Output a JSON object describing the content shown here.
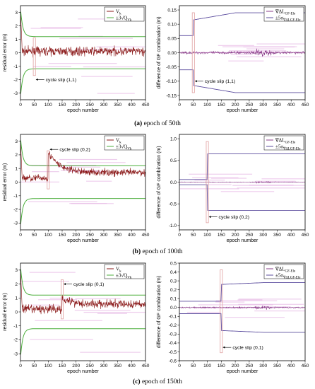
{
  "colors": {
    "residual": "#8b1a1a",
    "threshold": "#4caf3c",
    "mask": "#e7b9e6",
    "gf_diff": "#8a3c8a",
    "gf_bound": "#5b4c9e",
    "slip_box": "#e0a0a0"
  },
  "captions": [
    {
      "label": "(a)",
      "text": " epoch of 50th"
    },
    {
      "label": "(b)",
      "text": " epoch of 100th"
    },
    {
      "label": "(c)",
      "text": " epoch of 150th"
    }
  ],
  "chart_data": [
    {
      "type": "line",
      "panel": "a-left",
      "xlabel": "epoch number",
      "ylabel": "residual error (m)",
      "xlim": [
        0,
        450
      ],
      "ylim": [
        -3.5,
        3.5
      ],
      "xticks": [
        "0",
        "50",
        "100",
        "150",
        "200",
        "250",
        "300",
        "350",
        "400",
        "450"
      ],
      "yticks": [
        "-3",
        "-2",
        "-1",
        "0",
        "1",
        "2",
        "3"
      ],
      "legend": {
        "position": "top-right",
        "entries": [
          "V_k",
          "±3√Q_Vk"
        ]
      },
      "series": [
        {
          "name": "V_k",
          "level_before": 0.1,
          "level_after": 0.1,
          "noise": 0.3,
          "spike_epoch": 50
        },
        {
          "name": "±3√Q_Vk",
          "start": 3.3,
          "asymptote": 1.2
        }
      ],
      "annotation": {
        "text": "cycle slip (1,1)",
        "epoch": 50,
        "y": -2.0
      }
    },
    {
      "type": "line",
      "panel": "a-right",
      "xlabel": "epoch number",
      "ylabel": "difference of GF combination (m)",
      "xlim": [
        0,
        450
      ],
      "ylim": [
        -0.165,
        0.165
      ],
      "xticks": [
        "0",
        "50",
        "100",
        "150",
        "200",
        "250",
        "300",
        "350",
        "400",
        "450"
      ],
      "yticks": [
        "-0.15",
        "-0.10",
        "-0.05",
        "0.00",
        "0.05",
        "0.10",
        "0.15"
      ],
      "legend": {
        "position": "top-right",
        "entries": [
          "∇ΔL_GF-Ele",
          "±5σ_∇ΔL_GF-Ele"
        ]
      },
      "series": [
        {
          "name": "∇ΔL_GF-Ele",
          "noise": 0.004
        },
        {
          "name": "±5σ_∇ΔL_GF-Ele",
          "before": 0.06,
          "after": 0.115,
          "end": 0.14,
          "slip_epoch": 50
        }
      ],
      "annotation": {
        "text": "cycle slip (1,1)",
        "epoch": 50,
        "y": -0.1
      }
    },
    {
      "type": "line",
      "panel": "b-left",
      "xlabel": "epoch number",
      "ylabel": "residual error (m)",
      "xlim": [
        0,
        450
      ],
      "ylim": [
        -3.5,
        3.5
      ],
      "xticks": [
        "0",
        "50",
        "100",
        "150",
        "200",
        "250",
        "300",
        "350",
        "400",
        "450"
      ],
      "yticks": [
        "-3",
        "-2",
        "-1",
        "0",
        "1",
        "2",
        "3"
      ],
      "legend": {
        "position": "top-right",
        "entries": [
          "V_k",
          "±3√Q_Vk"
        ]
      },
      "series": [
        {
          "name": "V_k",
          "level_before": 0.3,
          "level_after": 2.2,
          "decay_to": 0.7,
          "noise": 0.25,
          "spike_epoch": 100
        },
        {
          "name": "±3√Q_Vk",
          "start": 3.3,
          "asymptote": 1.2
        }
      ],
      "annotation": {
        "text": "cycle slip (0,2)",
        "epoch": 100,
        "y": 2.4
      }
    },
    {
      "type": "line",
      "panel": "b-right",
      "xlabel": "epoch number",
      "ylabel": "difference of GF combination (m)",
      "xlim": [
        0,
        450
      ],
      "ylim": [
        -1.1,
        1.1
      ],
      "xticks": [
        "0",
        "50",
        "100",
        "150",
        "200",
        "250",
        "300",
        "350",
        "400",
        "450"
      ],
      "yticks": [
        "-1.0",
        "-0.5",
        "0.0",
        "0.5",
        "1.0"
      ],
      "legend": {
        "position": "top-right",
        "entries": [
          "∇ΔL_GF-Ele",
          "±5σ_∇ΔL_GF-Ele"
        ]
      },
      "series": [
        {
          "name": "∇ΔL_GF-Ele",
          "noise": 0.006
        },
        {
          "name": "±5σ_∇ΔL_GF-Ele",
          "before": 0.06,
          "after": 0.65,
          "end": 0.65,
          "slip_epoch": 100
        }
      ],
      "annotation": {
        "text": "cycle slip (0,2)",
        "epoch": 100,
        "y": -0.8
      }
    },
    {
      "type": "line",
      "panel": "c-left",
      "xlabel": "epoch number",
      "ylabel": "residual error (m)",
      "xlim": [
        0,
        450
      ],
      "ylim": [
        -3.5,
        3.5
      ],
      "xticks": [
        "0",
        "50",
        "100",
        "150",
        "200",
        "250",
        "300",
        "350",
        "400",
        "450"
      ],
      "yticks": [
        "-3",
        "-2",
        "-1",
        "0",
        "1",
        "2",
        "3"
      ],
      "legend": {
        "position": "top-right",
        "entries": [
          "V_k",
          "±3√Q_Vk"
        ]
      },
      "series": [
        {
          "name": "V_k",
          "level_before": 0.2,
          "level_after": 1.0,
          "decay_to": 0.55,
          "noise": 0.3,
          "spike_epoch": 150
        },
        {
          "name": "±3√Q_Vk",
          "start": 3.3,
          "asymptote": 1.2
        }
      ],
      "annotation": {
        "text": "cycle slip (0,1)",
        "epoch": 150,
        "y": 2.0
      }
    },
    {
      "type": "line",
      "panel": "c-right",
      "xlabel": "epoch number",
      "ylabel": "difference of GF combination (m)",
      "xlim": [
        0,
        450
      ],
      "ylim": [
        -0.6,
        0.5
      ],
      "xticks": [
        "0",
        "50",
        "100",
        "150",
        "200",
        "250",
        "300",
        "350",
        "400",
        "450"
      ],
      "yticks": [
        "-0.6",
        "-0.5",
        "-0.4",
        "-0.3",
        "-0.2",
        "-0.1",
        "0.0",
        "0.1",
        "0.2",
        "0.3",
        "0.4",
        "0.5"
      ],
      "legend": {
        "position": "top-right",
        "entries": [
          "∇ΔL_GF-Ele",
          "±5σ_∇ΔL_GF-Ele"
        ]
      },
      "series": [
        {
          "name": "∇ΔL_GF-Ele",
          "noise": 0.006
        },
        {
          "name": "±5σ_∇ΔL_GF-Ele",
          "before": 0.07,
          "after": 0.26,
          "end": 0.28,
          "slip_epoch": 150
        }
      ],
      "annotation": {
        "text": "cycle slip (0,1)",
        "epoch": 150,
        "y": -0.45
      }
    }
  ]
}
